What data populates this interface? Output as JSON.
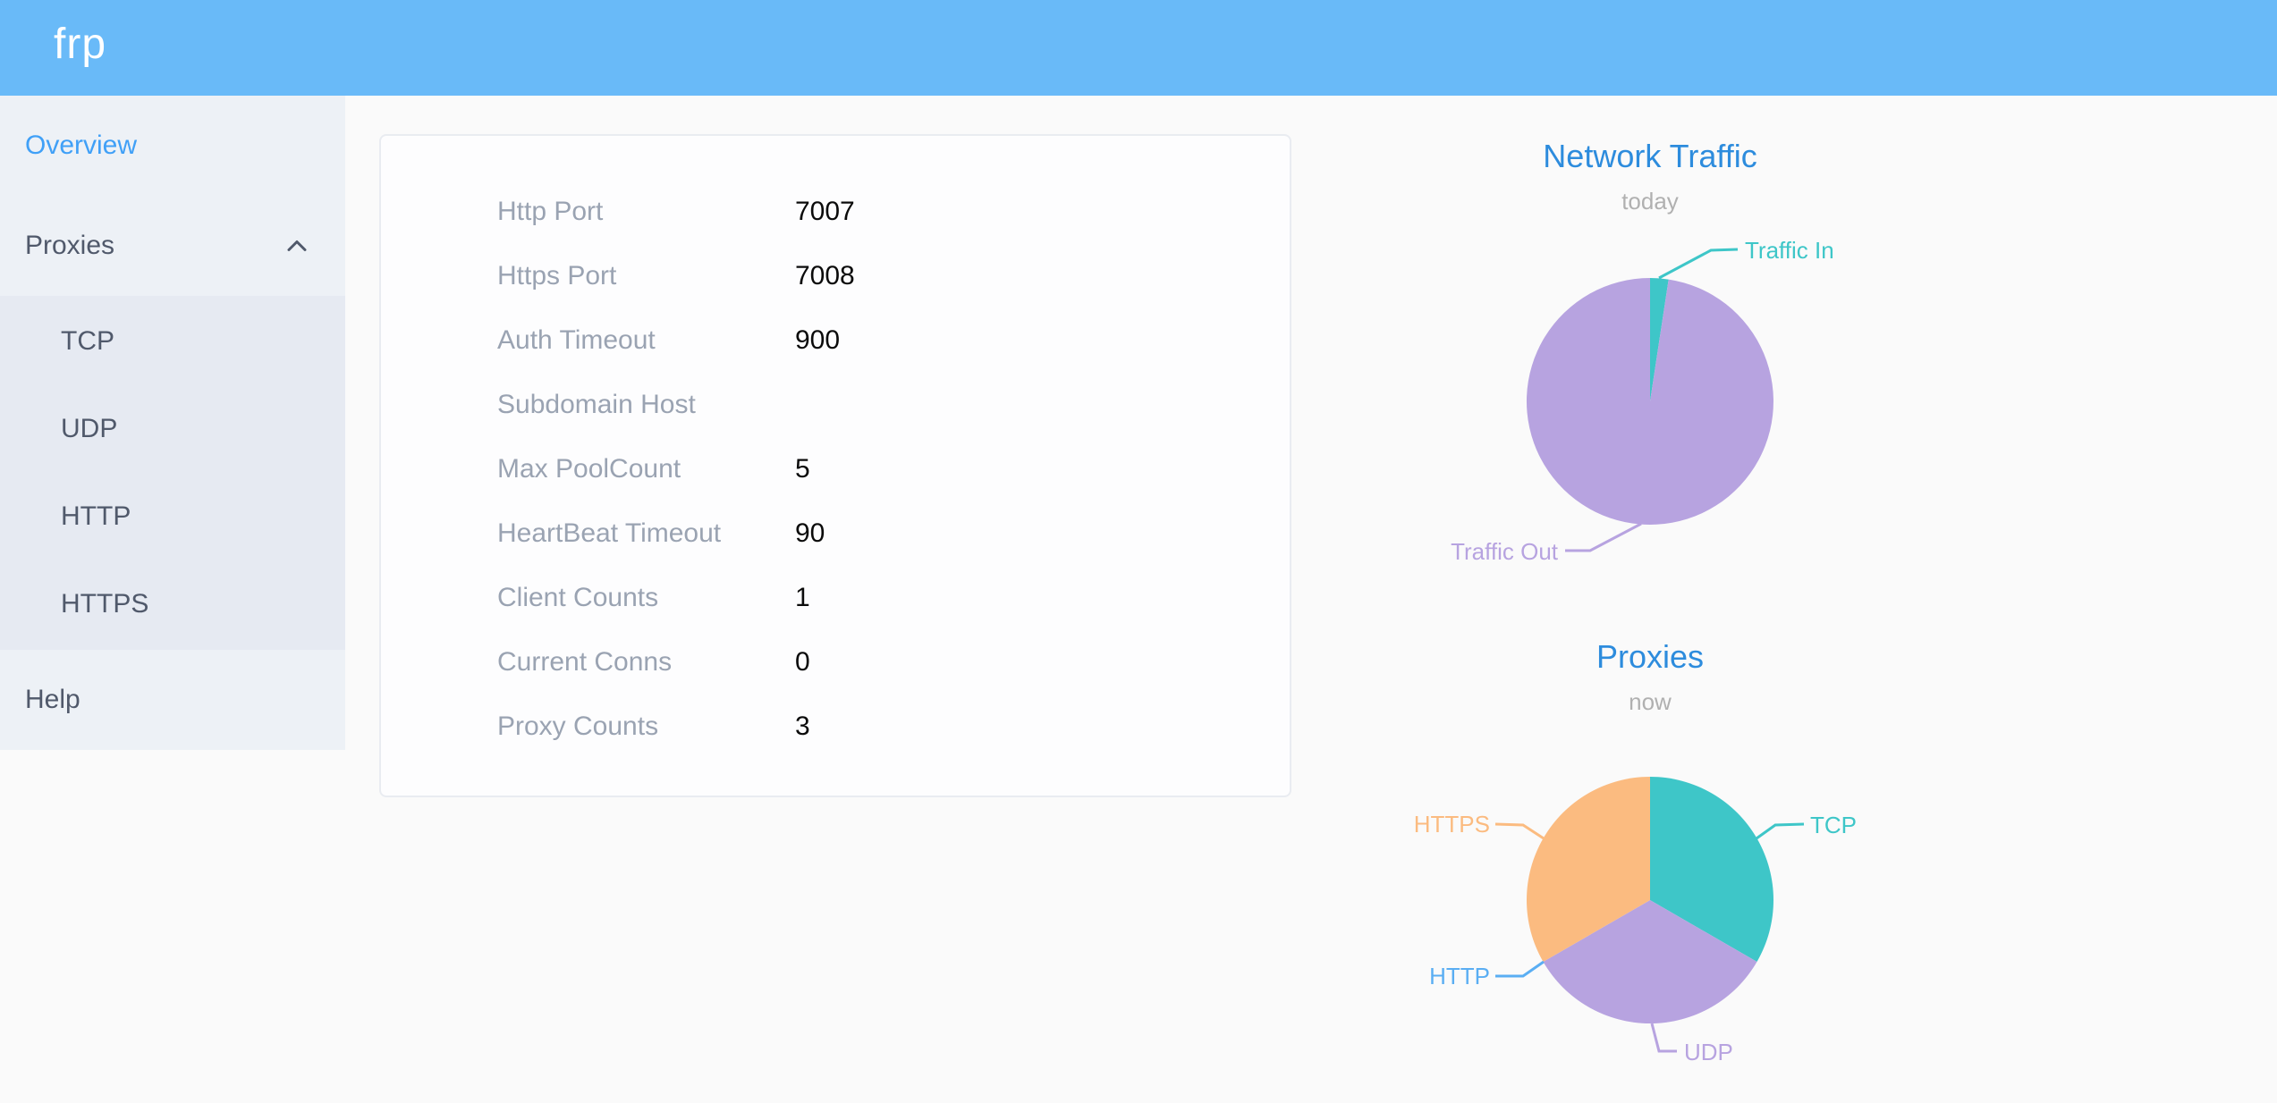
{
  "header": {
    "logo_text": "frp"
  },
  "sidebar": {
    "overview_label": "Overview",
    "proxies_label": "Proxies",
    "help_label": "Help",
    "proxy_types": [
      {
        "label": "TCP"
      },
      {
        "label": "UDP"
      },
      {
        "label": "HTTP"
      },
      {
        "label": "HTTPS"
      }
    ]
  },
  "server_info": {
    "rows": [
      {
        "label": "Http Port",
        "value": "7007"
      },
      {
        "label": "Https Port",
        "value": "7008"
      },
      {
        "label": "Auth Timeout",
        "value": "900"
      },
      {
        "label": "Subdomain Host",
        "value": ""
      },
      {
        "label": "Max PoolCount",
        "value": "5"
      },
      {
        "label": "HeartBeat Timeout",
        "value": "90"
      },
      {
        "label": "Client Counts",
        "value": "1"
      },
      {
        "label": "Current Conns",
        "value": "0"
      },
      {
        "label": "Proxy Counts",
        "value": "3"
      }
    ]
  },
  "chart_data": [
    {
      "type": "pie",
      "title": "Network Traffic",
      "subtitle": "today",
      "labels": [
        "Traffic In",
        "Traffic Out"
      ],
      "values": [
        2.4,
        97.6
      ],
      "values_estimated": true,
      "colors": [
        "#3ec6c8",
        "#b7a3e0"
      ],
      "start_angle_deg": 0,
      "clockwise": true,
      "labels_position": "outside",
      "legend": "none"
    },
    {
      "type": "pie",
      "title": "Proxies",
      "subtitle": "now",
      "labels": [
        "TCP",
        "UDP",
        "HTTP",
        "HTTPS"
      ],
      "values": [
        1,
        1,
        0,
        1
      ],
      "colors": [
        "#3ec6c8",
        "#b7a3e0",
        "#5aaef3",
        "#fbbb80"
      ],
      "start_angle_deg": 0,
      "clockwise": true,
      "labels_position": "outside",
      "legend": "none"
    }
  ],
  "theme": {
    "header_bg": "#69baf8",
    "sidebar_bg": "#edf1f6",
    "submenu_bg": "#e6eaf2",
    "menu_text": "#50596b",
    "active_menu_text": "#40a0f7",
    "main_bg": "#fafafa",
    "card_border": "#e9ecf1",
    "label_gray": "#9aa3b2",
    "chart_title_blue": "#2d8cdd",
    "chart_subtitle_gray": "#b0b0b0"
  }
}
